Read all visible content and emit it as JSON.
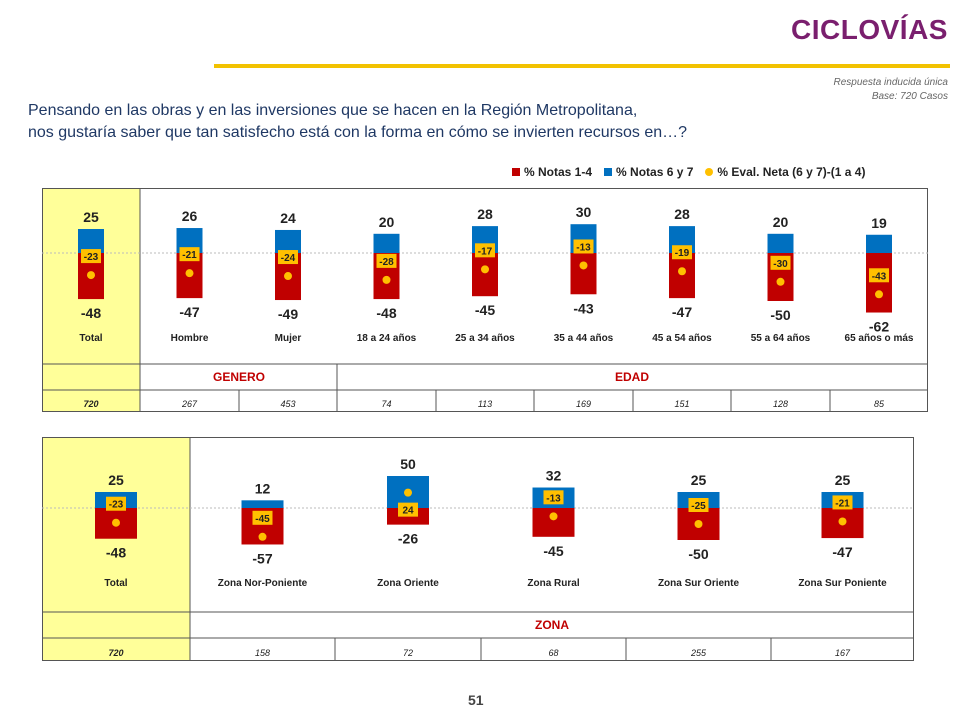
{
  "header": {
    "title": "CICLOVÍAS",
    "meta_line1": "Respuesta inducida única",
    "meta_line2": "Base: 720 Casos"
  },
  "question": {
    "line1": "Pensando en las obras y en las inversiones que se hacen en la Región Metropolitana,",
    "line2": "nos gustaría saber que tan satisfecho está con la forma en cómo se invierten recursos en…?"
  },
  "legend": {
    "neg": "% Notas 1-4",
    "pos": "% Notas 6 y 7",
    "net": "% Eval. Neta (6 y 7)-(1 a 4)"
  },
  "colors": {
    "neg": "#c00000",
    "pos": "#0070c0",
    "net": "#ffc000",
    "highlight": "#ffff99",
    "section_label": "#c00000"
  },
  "page_number": "51",
  "chart_data": [
    {
      "type": "bar",
      "categories": [
        "Total",
        "Hombre",
        "Mujer",
        "18 a 24 años",
        "25 a 34 años",
        "35 a 44 años",
        "45 a 54 años",
        "55 a 64 años",
        "65 años o más"
      ],
      "series": [
        {
          "name": "% Notas 1-4",
          "values": [
            -48,
            -47,
            -49,
            -48,
            -45,
            -43,
            -47,
            -50,
            -62
          ]
        },
        {
          "name": "% Notas 6 y 7",
          "values": [
            25,
            26,
            24,
            20,
            28,
            30,
            28,
            20,
            19
          ]
        },
        {
          "name": "% Eval. Neta (6 y 7)-(1 a 4)",
          "values": [
            -23,
            -21,
            -24,
            -28,
            -17,
            -13,
            -19,
            -30,
            -43
          ]
        }
      ],
      "groups": [
        {
          "label": "GENERO",
          "categories": [
            "Hombre",
            "Mujer"
          ]
        },
        {
          "label": "EDAD",
          "categories": [
            "18 a 24 años",
            "25 a 34 años",
            "35 a 44 años",
            "45 a 54 años",
            "55 a 64 años",
            "65 años o más"
          ]
        }
      ],
      "bases": [
        "720",
        "267",
        "453",
        "74",
        "113",
        "169",
        "151",
        "128",
        "85"
      ]
    },
    {
      "type": "bar",
      "categories": [
        "Total",
        "Zona Nor-Poniente",
        "Zona Oriente",
        "Zona Rural",
        "Zona Sur Oriente",
        "Zona Sur Poniente"
      ],
      "series": [
        {
          "name": "% Notas 1-4",
          "values": [
            -48,
            -57,
            -26,
            -45,
            -50,
            -47
          ]
        },
        {
          "name": "% Notas 6 y 7",
          "values": [
            25,
            12,
            50,
            32,
            25,
            25
          ]
        },
        {
          "name": "% Eval. Neta (6 y 7)-(1 a 4)",
          "values": [
            -23,
            -45,
            24,
            -13,
            -25,
            -21
          ]
        }
      ],
      "groups": [
        {
          "label": "ZONA",
          "categories": [
            "Zona Nor-Poniente",
            "Zona Oriente",
            "Zona Rural",
            "Zona Sur Oriente",
            "Zona Sur Poniente"
          ]
        }
      ],
      "bases": [
        "720",
        "158",
        "72",
        "68",
        "255",
        "167"
      ]
    }
  ]
}
